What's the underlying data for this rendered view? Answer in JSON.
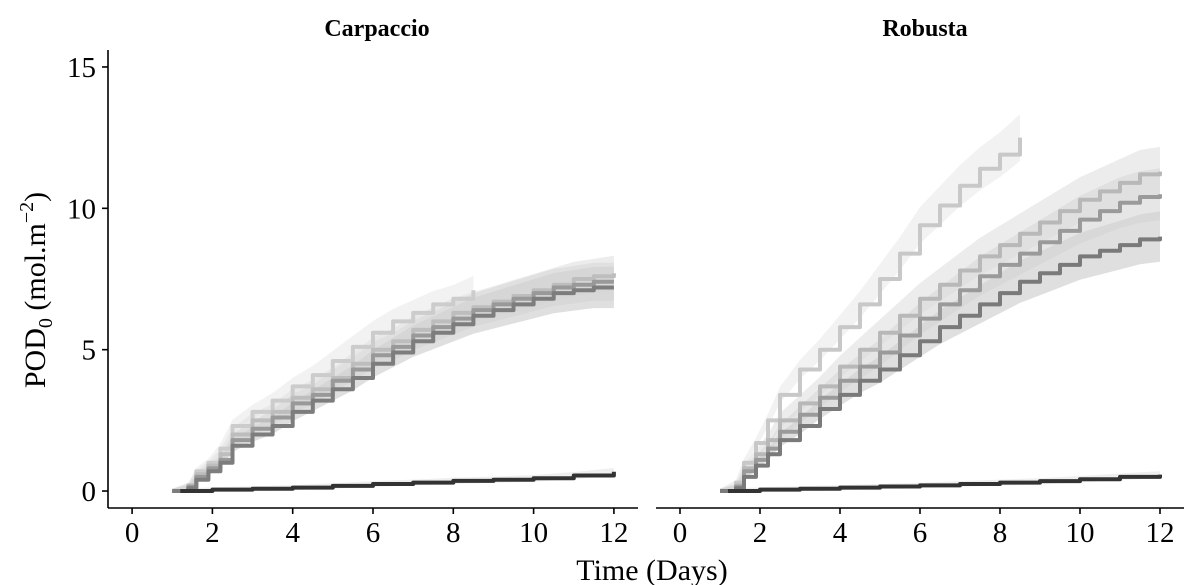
{
  "chart_data": {
    "type": "line",
    "xlabel": "Time (Days)",
    "ylabel": {
      "main": "POD",
      "subscript": "0",
      "unit_open": " (mol.m",
      "superscript": "−2",
      "unit_close": ")"
    },
    "xlim": [
      -0.6,
      12.6
    ],
    "ylim": [
      -0.6,
      15.6
    ],
    "x_ticks": [
      0,
      2,
      4,
      6,
      8,
      10,
      12
    ],
    "y_ticks": [
      0,
      5,
      10,
      15
    ],
    "grid": false,
    "legend": "none",
    "panels": [
      {
        "title": "Carpaccio",
        "series": [
          {
            "color": "#cccccc",
            "band": "#ececec",
            "points": [
              [
                1,
                0
              ],
              [
                1.4,
                0.2
              ],
              [
                1.6,
                0.7
              ],
              [
                1.9,
                1.0
              ],
              [
                2.2,
                1.5
              ],
              [
                2.5,
                2.3
              ],
              [
                3,
                2.8
              ],
              [
                3.5,
                3.2
              ],
              [
                4,
                3.7
              ],
              [
                4.5,
                4.1
              ],
              [
                5,
                4.6
              ],
              [
                5.5,
                5.1
              ],
              [
                6,
                5.6
              ],
              [
                6.5,
                6.0
              ],
              [
                7,
                6.3
              ],
              [
                7.5,
                6.6
              ],
              [
                8,
                6.8
              ],
              [
                8.5,
                7.1
              ]
            ]
          },
          {
            "color": "#bdbdbd",
            "band": "#e4e4e4",
            "points": [
              [
                1,
                0
              ],
              [
                1.4,
                0.2
              ],
              [
                1.6,
                0.6
              ],
              [
                1.9,
                0.9
              ],
              [
                2.2,
                1.3
              ],
              [
                2.5,
                2.0
              ],
              [
                3,
                2.5
              ],
              [
                3.5,
                2.8
              ],
              [
                4,
                3.3
              ],
              [
                4.5,
                3.6
              ],
              [
                5,
                4.0
              ],
              [
                5.5,
                4.5
              ],
              [
                6,
                5.0
              ],
              [
                6.5,
                5.3
              ],
              [
                7,
                5.7
              ],
              [
                7.5,
                6.0
              ],
              [
                8,
                6.3
              ],
              [
                8.5,
                6.5
              ],
              [
                9,
                6.7
              ],
              [
                9.5,
                6.9
              ],
              [
                10,
                7.1
              ],
              [
                10.5,
                7.3
              ],
              [
                11,
                7.5
              ],
              [
                11.5,
                7.6
              ],
              [
                12,
                7.7
              ]
            ]
          },
          {
            "color": "#999999",
            "band": "#dcdcdc",
            "points": [
              [
                1,
                0
              ],
              [
                1.4,
                0.15
              ],
              [
                1.6,
                0.5
              ],
              [
                1.9,
                0.8
              ],
              [
                2.2,
                1.1
              ],
              [
                2.5,
                1.8
              ],
              [
                3,
                2.2
              ],
              [
                3.5,
                2.6
              ],
              [
                4,
                3.1
              ],
              [
                4.5,
                3.4
              ],
              [
                5,
                3.9
              ],
              [
                5.5,
                4.3
              ],
              [
                6,
                4.8
              ],
              [
                6.5,
                5.1
              ],
              [
                7,
                5.5
              ],
              [
                7.5,
                5.8
              ],
              [
                8,
                6.1
              ],
              [
                8.5,
                6.4
              ],
              [
                9,
                6.6
              ],
              [
                9.5,
                6.8
              ],
              [
                10,
                7.0
              ],
              [
                10.5,
                7.2
              ],
              [
                11,
                7.3
              ],
              [
                11.5,
                7.4
              ],
              [
                12,
                7.4
              ]
            ]
          },
          {
            "color": "#7d7d7d",
            "band": "#d2d2d2",
            "points": [
              [
                1,
                0
              ],
              [
                1.4,
                0.1
              ],
              [
                1.6,
                0.4
              ],
              [
                1.9,
                0.7
              ],
              [
                2.2,
                1.0
              ],
              [
                2.5,
                1.6
              ],
              [
                3,
                2.0
              ],
              [
                3.5,
                2.3
              ],
              [
                4,
                2.8
              ],
              [
                4.5,
                3.2
              ],
              [
                5,
                3.6
              ],
              [
                5.5,
                4.0
              ],
              [
                6,
                4.5
              ],
              [
                6.5,
                4.9
              ],
              [
                7,
                5.3
              ],
              [
                7.5,
                5.6
              ],
              [
                8,
                5.9
              ],
              [
                8.5,
                6.2
              ],
              [
                9,
                6.4
              ],
              [
                9.5,
                6.6
              ],
              [
                10,
                6.8
              ],
              [
                10.5,
                7.0
              ],
              [
                11,
                7.1
              ],
              [
                11.5,
                7.2
              ],
              [
                12,
                7.2
              ]
            ]
          },
          {
            "color": "#333333",
            "band": "#e8e8e8",
            "points": [
              [
                1.2,
                0
              ],
              [
                2,
                0.05
              ],
              [
                3,
                0.08
              ],
              [
                4,
                0.12
              ],
              [
                5,
                0.18
              ],
              [
                6,
                0.25
              ],
              [
                7,
                0.3
              ],
              [
                8,
                0.36
              ],
              [
                9,
                0.4
              ],
              [
                10,
                0.45
              ],
              [
                11,
                0.55
              ],
              [
                12,
                0.68
              ]
            ]
          }
        ]
      },
      {
        "title": "Robusta",
        "series": [
          {
            "color": "#c8c8c8",
            "band": "#ececec",
            "points": [
              [
                1,
                0
              ],
              [
                1.4,
                0.3
              ],
              [
                1.6,
                1.0
              ],
              [
                1.9,
                1.7
              ],
              [
                2.2,
                2.5
              ],
              [
                2.5,
                3.4
              ],
              [
                3,
                4.3
              ],
              [
                3.5,
                5.0
              ],
              [
                4,
                5.8
              ],
              [
                4.5,
                6.6
              ],
              [
                5,
                7.5
              ],
              [
                5.5,
                8.4
              ],
              [
                6,
                9.4
              ],
              [
                6.5,
                10.1
              ],
              [
                7,
                10.8
              ],
              [
                7.5,
                11.4
              ],
              [
                8,
                11.9
              ],
              [
                8.5,
                12.5
              ]
            ]
          },
          {
            "color": "#b8b8b8",
            "band": "#e4e4e4",
            "points": [
              [
                1,
                0
              ],
              [
                1.4,
                0.2
              ],
              [
                1.6,
                0.8
              ],
              [
                1.9,
                1.3
              ],
              [
                2.2,
                1.8
              ],
              [
                2.5,
                2.5
              ],
              [
                3,
                3.1
              ],
              [
                3.5,
                3.7
              ],
              [
                4,
                4.4
              ],
              [
                4.5,
                5.0
              ],
              [
                5,
                5.6
              ],
              [
                5.5,
                6.2
              ],
              [
                6,
                6.8
              ],
              [
                6.5,
                7.3
              ],
              [
                7,
                7.8
              ],
              [
                7.5,
                8.3
              ],
              [
                8,
                8.7
              ],
              [
                8.5,
                9.1
              ],
              [
                9,
                9.5
              ],
              [
                9.5,
                9.9
              ],
              [
                10,
                10.3
              ],
              [
                10.5,
                10.6
              ],
              [
                11,
                10.9
              ],
              [
                11.5,
                11.2
              ],
              [
                12,
                11.3
              ]
            ]
          },
          {
            "color": "#9a9a9a",
            "band": "#dcdcdc",
            "points": [
              [
                1,
                0
              ],
              [
                1.4,
                0.15
              ],
              [
                1.6,
                0.7
              ],
              [
                1.9,
                1.1
              ],
              [
                2.2,
                1.5
              ],
              [
                2.5,
                2.1
              ],
              [
                3,
                2.7
              ],
              [
                3.5,
                3.3
              ],
              [
                4,
                3.9
              ],
              [
                4.5,
                4.4
              ],
              [
                5,
                4.9
              ],
              [
                5.5,
                5.5
              ],
              [
                6,
                6.1
              ],
              [
                6.5,
                6.6
              ],
              [
                7,
                7.1
              ],
              [
                7.5,
                7.6
              ],
              [
                8,
                8.0
              ],
              [
                8.5,
                8.4
              ],
              [
                9,
                8.8
              ],
              [
                9.5,
                9.2
              ],
              [
                10,
                9.6
              ],
              [
                10.5,
                9.9
              ],
              [
                11,
                10.2
              ],
              [
                11.5,
                10.4
              ],
              [
                12,
                10.5
              ]
            ]
          },
          {
            "color": "#7a7a7a",
            "band": "#d2d2d2",
            "points": [
              [
                1,
                0
              ],
              [
                1.4,
                0.1
              ],
              [
                1.6,
                0.5
              ],
              [
                1.9,
                0.9
              ],
              [
                2.2,
                1.3
              ],
              [
                2.5,
                1.8
              ],
              [
                3,
                2.3
              ],
              [
                3.5,
                2.9
              ],
              [
                4,
                3.4
              ],
              [
                4.5,
                3.9
              ],
              [
                5,
                4.3
              ],
              [
                5.5,
                4.8
              ],
              [
                6,
                5.3
              ],
              [
                6.5,
                5.8
              ],
              [
                7,
                6.2
              ],
              [
                7.5,
                6.6
              ],
              [
                8,
                7.0
              ],
              [
                8.5,
                7.4
              ],
              [
                9,
                7.7
              ],
              [
                9.5,
                8.0
              ],
              [
                10,
                8.3
              ],
              [
                10.5,
                8.5
              ],
              [
                11,
                8.7
              ],
              [
                11.5,
                8.9
              ],
              [
                12,
                9.0
              ]
            ]
          },
          {
            "color": "#333333",
            "band": "#e8e8e8",
            "points": [
              [
                1.2,
                0
              ],
              [
                2,
                0.05
              ],
              [
                3,
                0.08
              ],
              [
                4,
                0.12
              ],
              [
                5,
                0.16
              ],
              [
                6,
                0.2
              ],
              [
                7,
                0.25
              ],
              [
                8,
                0.3
              ],
              [
                9,
                0.35
              ],
              [
                10,
                0.42
              ],
              [
                11,
                0.5
              ],
              [
                12,
                0.58
              ]
            ]
          }
        ]
      }
    ]
  }
}
